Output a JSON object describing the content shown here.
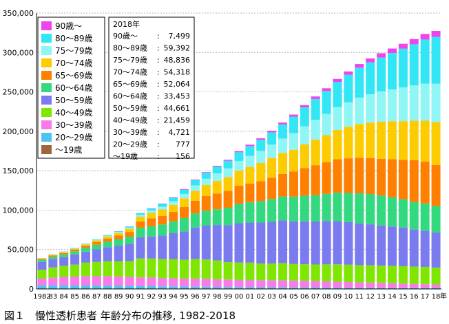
{
  "chart_data": {
    "type": "bar",
    "stacked": true,
    "ylim": [
      0,
      350000
    ],
    "ytick_labels": [
      "0",
      "50,000",
      "100,000",
      "150,000",
      "200,000",
      "250,000",
      "300,000",
      "350,000"
    ],
    "grid": true,
    "legend_placement": "top-left",
    "x_unit": "年",
    "categories": [
      "1982",
      "83",
      "84",
      "85",
      "86",
      "87",
      "88",
      "89",
      "90",
      "91",
      "92",
      "93",
      "94",
      "95",
      "96",
      "97",
      "98",
      "99",
      "00",
      "01",
      "02",
      "03",
      "04",
      "05",
      "06",
      "07",
      "08",
      "09",
      "10",
      "11",
      "12",
      "13",
      "14",
      "15",
      "16",
      "17",
      "18"
    ],
    "series": [
      {
        "name": "〜19歳",
        "color": "#a0643c",
        "values": [
          300,
          300,
          300,
          300,
          300,
          300,
          300,
          300,
          300,
          300,
          300,
          300,
          300,
          300,
          300,
          300,
          300,
          300,
          300,
          300,
          300,
          300,
          300,
          300,
          300,
          300,
          300,
          250,
          250,
          250,
          200,
          200,
          200,
          200,
          180,
          160,
          156
        ]
      },
      {
        "name": "20〜29歳",
        "color": "#4fc3f0",
        "values": [
          4000,
          4000,
          4000,
          4000,
          4000,
          3800,
          3700,
          3600,
          3500,
          3300,
          3200,
          3000,
          2900,
          2700,
          2600,
          2500,
          2300,
          2200,
          2100,
          2000,
          1900,
          1800,
          1700,
          1600,
          1500,
          1400,
          1300,
          1200,
          1100,
          1000,
          950,
          900,
          850,
          820,
          800,
          790,
          777
        ]
      },
      {
        "name": "30〜39歳",
        "color": "#f77ce8",
        "values": [
          9000,
          10000,
          11000,
          11500,
          12000,
          12000,
          12000,
          12000,
          11500,
          11000,
          11000,
          10500,
          10500,
          10000,
          10000,
          10000,
          9500,
          9500,
          9000,
          9000,
          9000,
          9000,
          8800,
          8700,
          8500,
          8300,
          8000,
          7700,
          7400,
          7000,
          6800,
          6500,
          6200,
          5800,
          5400,
          5000,
          4721
        ]
      },
      {
        "name": "40〜49歳",
        "color": "#7fe600",
        "values": [
          11000,
          13000,
          14000,
          15000,
          17000,
          18000,
          19000,
          19000,
          20000,
          24000,
          24000,
          24000,
          24000,
          24000,
          25000,
          24500,
          24000,
          22000,
          22000,
          22000,
          21000,
          21000,
          22000,
          21000,
          21000,
          21000,
          21500,
          22000,
          22000,
          22000,
          22000,
          22000,
          22000,
          22000,
          22000,
          22000,
          21459
        ]
      },
      {
        "name": "50〜59歳",
        "color": "#7b7bf0",
        "values": [
          10000,
          10500,
          11000,
          13000,
          14000,
          16000,
          18000,
          20000,
          22000,
          27000,
          28000,
          30000,
          33000,
          36000,
          40000,
          43000,
          45000,
          47000,
          50000,
          51000,
          52000,
          53000,
          54000,
          54000,
          54500,
          54500,
          55000,
          55000,
          54000,
          53000,
          52000,
          51000,
          50000,
          49000,
          47000,
          46000,
          44661
        ]
      },
      {
        "name": "60〜64歳",
        "color": "#33d97f",
        "values": [
          2500,
          3000,
          3500,
          4000,
          5000,
          6000,
          7000,
          8000,
          9000,
          12000,
          13000,
          14000,
          15000,
          17000,
          18000,
          19000,
          20000,
          22000,
          24500,
          25500,
          27000,
          29000,
          30500,
          31500,
          32500,
          33500,
          34500,
          36000,
          37000,
          38000,
          38500,
          38000,
          37000,
          36000,
          35000,
          34500,
          33453
        ]
      },
      {
        "name": "65〜69歳",
        "color": "#ff7f00",
        "values": [
          1200,
          1500,
          1700,
          2000,
          2500,
          3500,
          4000,
          5000,
          6000,
          8000,
          10000,
          11000,
          12000,
          14000,
          16000,
          18500,
          20000,
          21500,
          23000,
          24000,
          25500,
          27000,
          28500,
          32000,
          35000,
          38000,
          40000,
          42500,
          44000,
          45000,
          45500,
          46500,
          48500,
          50000,
          53000,
          53000,
          52064
        ]
      },
      {
        "name": "70〜74歳",
        "color": "#fccb00",
        "values": [
          700,
          900,
          1100,
          1300,
          1500,
          2000,
          2500,
          3000,
          4000,
          6000,
          7000,
          8000,
          9000,
          11000,
          12500,
          14000,
          16000,
          17500,
          19000,
          21000,
          23000,
          25000,
          26500,
          27500,
          30000,
          32500,
          34500,
          37000,
          40000,
          43000,
          45000,
          47000,
          48000,
          49000,
          50000,
          52000,
          54318
        ]
      },
      {
        "name": "75〜79歳",
        "color": "#8ff5f5",
        "values": [
          300,
          400,
          500,
          600,
          700,
          900,
          1100,
          1300,
          1600,
          2400,
          3000,
          3500,
          4500,
          5500,
          7000,
          8000,
          9500,
          11000,
          12500,
          14000,
          15500,
          17000,
          18500,
          21000,
          23000,
          25000,
          27000,
          29000,
          31000,
          33500,
          36000,
          38500,
          40500,
          43000,
          45000,
          47000,
          48836
        ]
      },
      {
        "name": "80〜89歳",
        "color": "#33e6f5",
        "values": [
          200,
          250,
          300,
          350,
          450,
          600,
          800,
          1000,
          1300,
          2000,
          2500,
          3500,
          4500,
          5500,
          6500,
          7500,
          8500,
          9500,
          11000,
          12500,
          14000,
          15500,
          18000,
          21000,
          24000,
          26500,
          29000,
          32000,
          35000,
          38000,
          40500,
          43000,
          46000,
          49000,
          52000,
          56000,
          59392
        ]
      },
      {
        "name": "90歳〜",
        "color": "#ee44ee",
        "values": [
          20,
          30,
          40,
          50,
          60,
          80,
          100,
          150,
          200,
          300,
          400,
          500,
          600,
          700,
          800,
          900,
          1100,
          1300,
          1500,
          1700,
          1900,
          2100,
          2300,
          2600,
          2900,
          3200,
          3500,
          3800,
          4200,
          4600,
          5000,
          5400,
          5800,
          6200,
          6600,
          7000,
          7499
        ]
      }
    ],
    "summary": {
      "title": "2018年",
      "rows": [
        {
          "label": "90歳〜",
          "value": "7,499"
        },
        {
          "label": "80〜89歳",
          "value": "59,392"
        },
        {
          "label": "75〜79歳",
          "value": "48,836"
        },
        {
          "label": "70〜74歳",
          "value": "54,318"
        },
        {
          "label": "65〜69歳",
          "value": "52,064"
        },
        {
          "label": "60〜64歳",
          "value": "33,453"
        },
        {
          "label": "50〜59歳",
          "value": "44,661"
        },
        {
          "label": "40〜49歳",
          "value": "21,459"
        },
        {
          "label": "30〜39歳",
          "value": "4,721"
        },
        {
          "label": "20〜29歳",
          "value": "777"
        },
        {
          "label": "〜19歳",
          "value": "156"
        }
      ]
    }
  },
  "caption": "図１　慢性透析患者 年齢分布の推移, 1982-2018"
}
